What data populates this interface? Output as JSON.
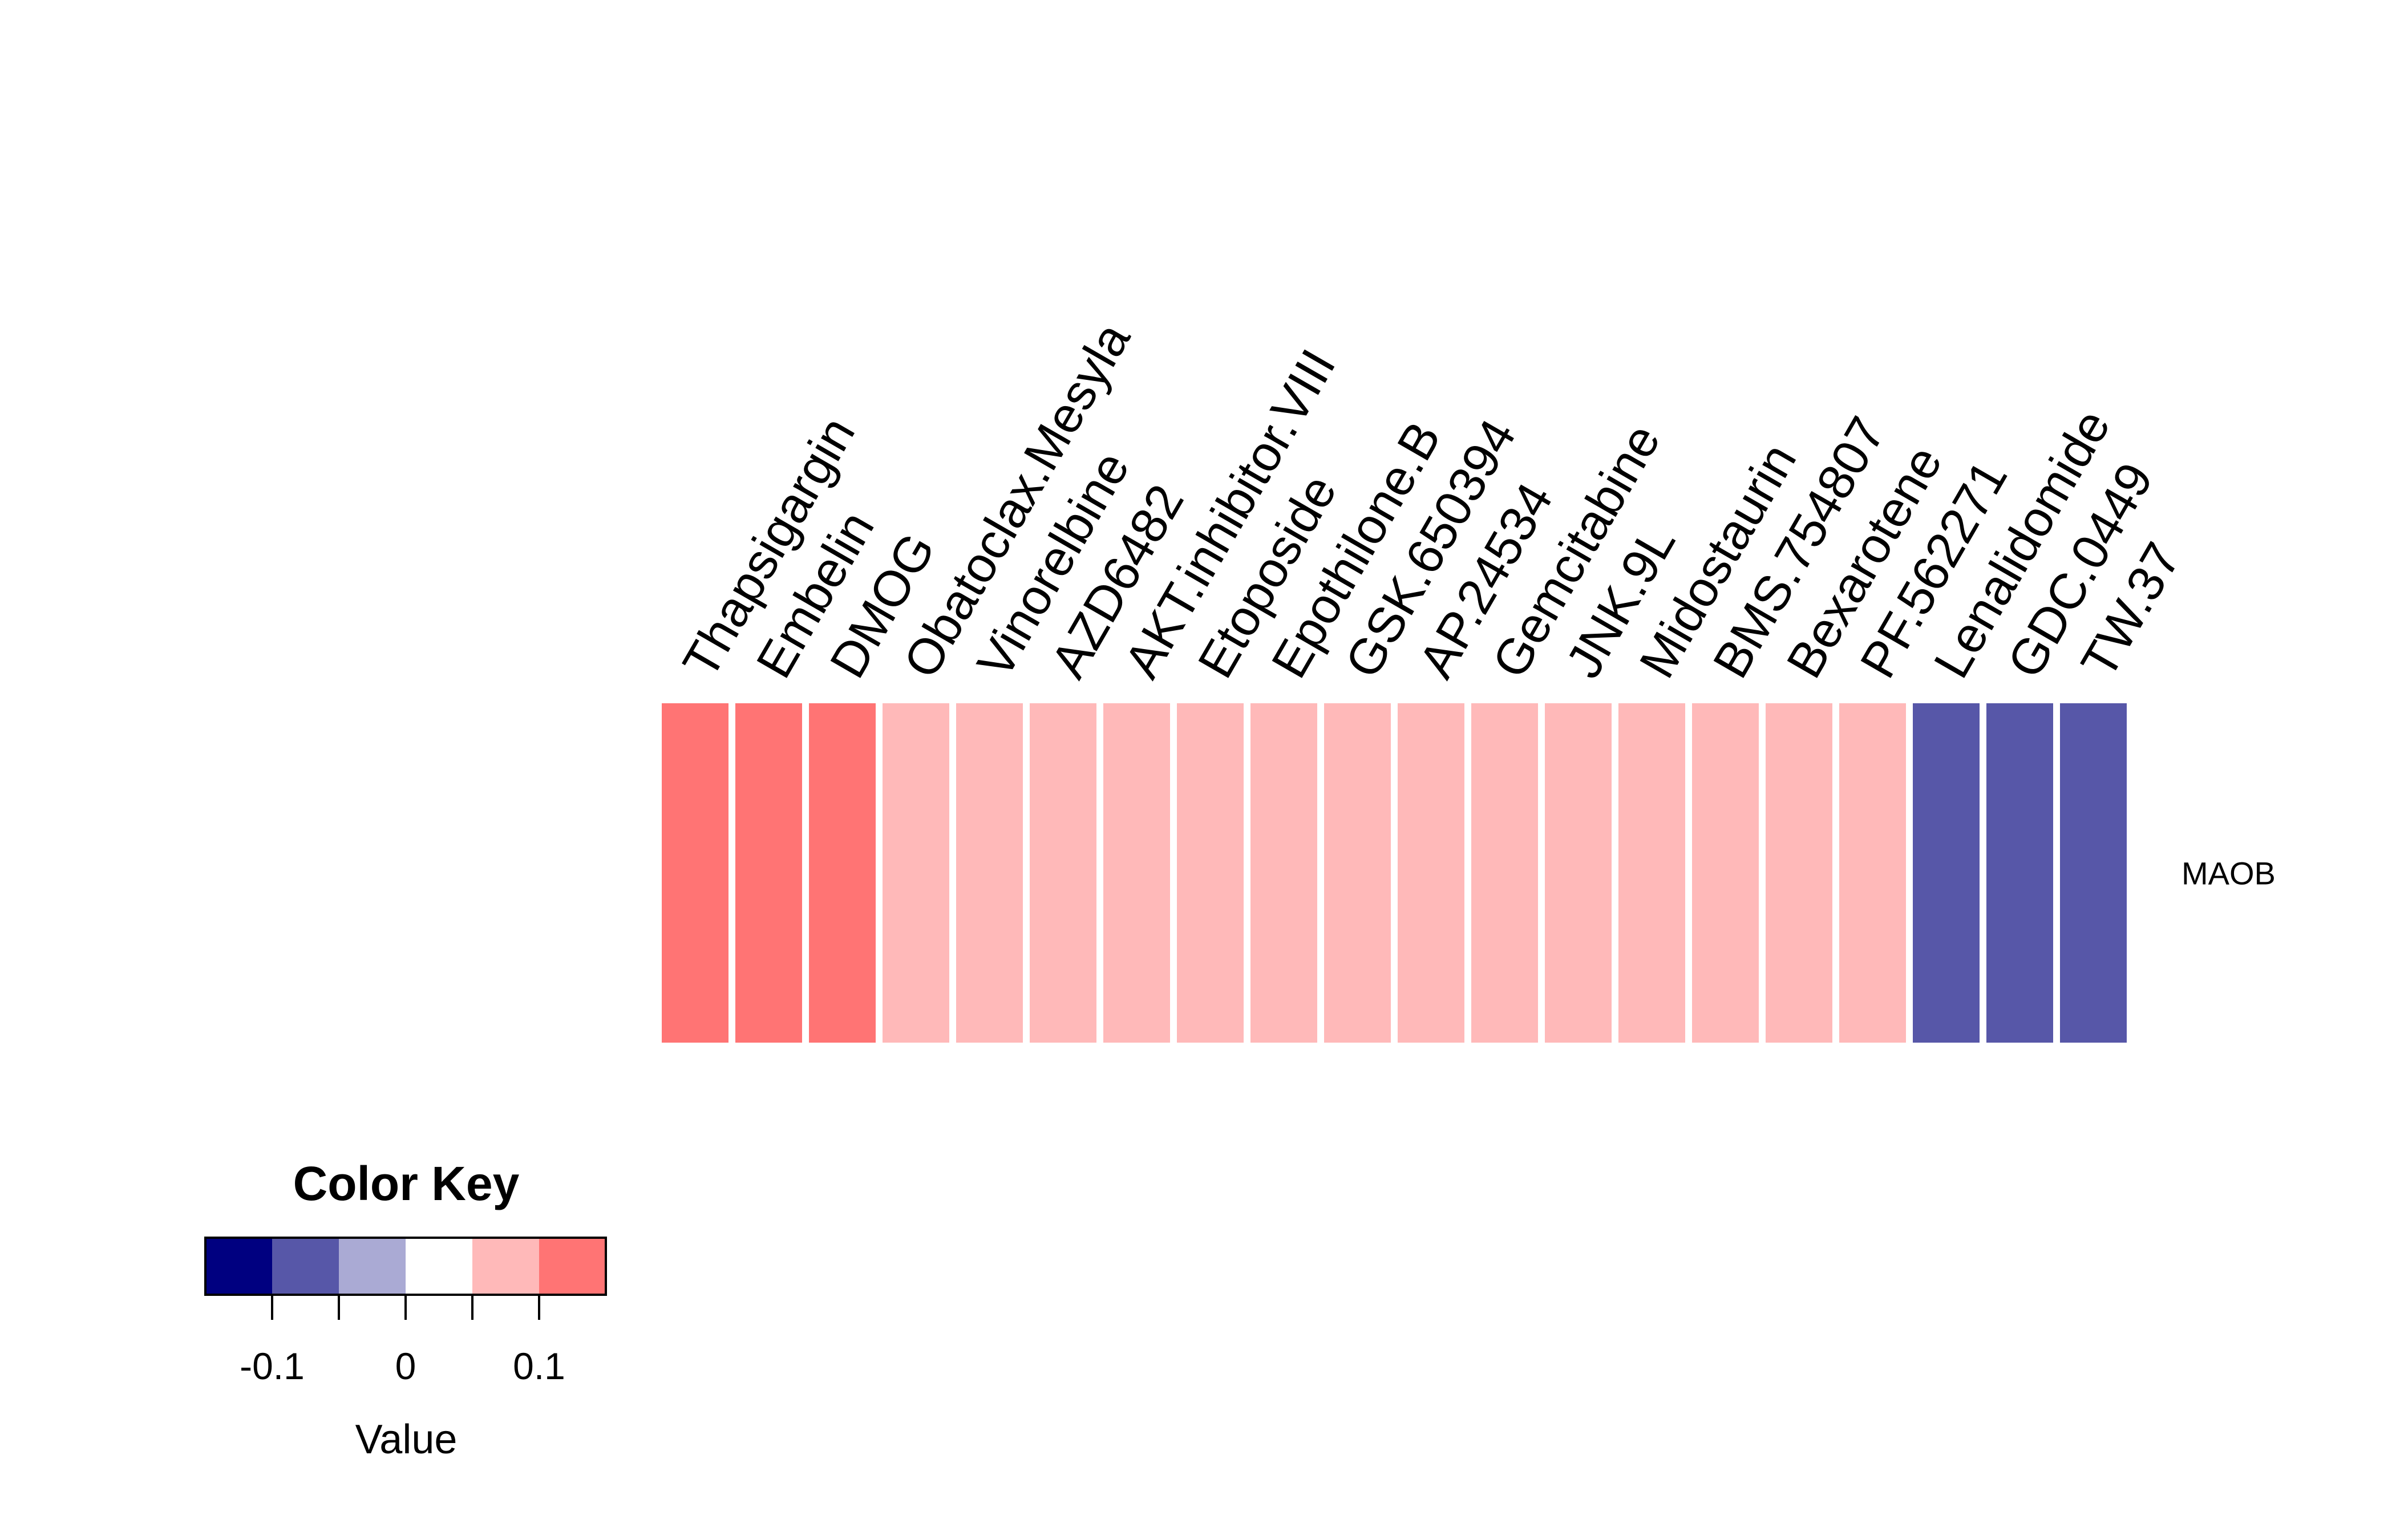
{
  "chart_data": {
    "type": "heatmap",
    "rows": [
      "MAOB"
    ],
    "columns": [
      "Thapsigargin",
      "Embelin",
      "DMOG",
      "Obatoclax.Mesyla",
      "Vinorelbine",
      "AZD6482",
      "AKT.inhibitor.VIII",
      "Etoposide",
      "Epothilone.B",
      "GSK.650394",
      "AP.24534",
      "Gemcitabine",
      "JNK.9L",
      "Midostaurin",
      "BMS.754807",
      "Bexarotene",
      "PF.562271",
      "Lenalidomide",
      "GDC.0449",
      "TW.37"
    ],
    "values": [
      [
        0.13,
        0.13,
        0.13,
        0.08,
        0.08,
        0.08,
        0.08,
        0.08,
        0.08,
        0.08,
        0.08,
        0.08,
        0.08,
        0.08,
        0.08,
        0.08,
        0.08,
        -0.08,
        -0.08,
        -0.08
      ]
    ],
    "color_key": {
      "title": "Color Key",
      "xlabel": "Value",
      "range": [
        -0.15,
        0.15
      ],
      "breaks": [
        -0.15,
        -0.1,
        -0.05,
        0.0,
        0.05,
        0.1,
        0.15
      ],
      "colors": [
        "#000080",
        "#5757A8",
        "#AAAAD4",
        "#FFFFFF",
        "#FFB9B9",
        "#FF7474",
        "#FF3333"
      ],
      "ticks": [
        -0.1,
        -0.05,
        0,
        0.05,
        0.1
      ],
      "tick_labels": [
        "-0.1",
        "0",
        "0.1"
      ]
    }
  }
}
